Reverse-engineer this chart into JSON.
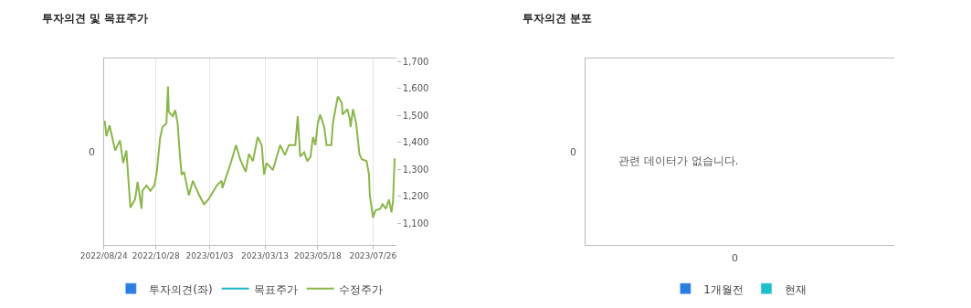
{
  "chart_data": [
    {
      "type": "line",
      "title": "투자의견 및 목표주가",
      "xlim": [
        "2022-08-24",
        "2023-08-24"
      ],
      "xticks": [
        {
          "value": "2022-08-24",
          "label": "2022/08/24"
        },
        {
          "value": "2022-10-28",
          "label": "2022/10/28"
        },
        {
          "value": "2023-01-03",
          "label": "2023/01/03"
        },
        {
          "value": "2023-03-13",
          "label": "2023/03/13"
        },
        {
          "value": "2023-05-18",
          "label": "2023/05/18"
        },
        {
          "value": "2023-07-26",
          "label": "2023/07/26"
        }
      ],
      "annotations": [
        "0"
      ],
      "y2lim": [
        1020,
        1710
      ],
      "y2ticks": [
        {
          "value": 1100,
          "label": "1,100"
        },
        {
          "value": 1200,
          "label": "1,200"
        },
        {
          "value": 1300,
          "label": "1,300"
        },
        {
          "value": 1400,
          "label": "1,400"
        },
        {
          "value": 1500,
          "label": "1,500"
        },
        {
          "value": 1600,
          "label": "1,600"
        },
        {
          "value": 1700,
          "label": "1,700"
        }
      ],
      "grid": "x",
      "legend": "bottom",
      "series": [
        {
          "name": "투자의견(좌)",
          "type": "bar",
          "color": "#2b7de0"
        },
        {
          "name": "목표주가",
          "type": "line",
          "color": "#1fb5c8",
          "axis": "y2"
        },
        {
          "name": "수정주가",
          "type": "line",
          "color": "#8ab64a",
          "axis": "y2",
          "x": [
            "2022-08-25",
            "2022-08-27",
            "2022-08-31",
            "2022-09-07",
            "2022-09-13",
            "2022-09-17",
            "2022-09-21",
            "2022-09-26",
            "2022-10-02",
            "2022-10-05",
            "2022-10-10",
            "2022-10-11",
            "2022-10-16",
            "2022-10-21",
            "2022-10-26",
            "2022-10-29",
            "2022-11-02",
            "2022-11-05",
            "2022-11-10",
            "2022-11-12",
            "2022-11-13",
            "2022-11-18",
            "2022-11-21",
            "2022-11-24",
            "2022-11-27",
            "2022-11-29",
            "2022-12-02",
            "2022-12-08",
            "2022-12-13",
            "2022-12-21",
            "2022-12-27",
            "2023-01-02",
            "2023-01-12",
            "2023-01-18",
            "2023-01-19",
            "2023-01-29",
            "2023-02-05",
            "2023-02-10",
            "2023-02-17",
            "2023-02-21",
            "2023-02-26",
            "2023-03-04",
            "2023-03-09",
            "2023-03-12",
            "2023-03-15",
            "2023-03-23",
            "2023-04-01",
            "2023-04-07",
            "2023-04-12",
            "2023-04-20",
            "2023-04-23",
            "2023-04-26",
            "2023-05-01",
            "2023-05-05",
            "2023-05-09",
            "2023-05-12",
            "2023-05-15",
            "2023-05-18",
            "2023-05-21",
            "2023-05-26",
            "2023-05-29",
            "2023-06-04",
            "2023-06-06",
            "2023-06-12",
            "2023-06-17",
            "2023-06-18",
            "2023-06-24",
            "2023-06-27",
            "2023-06-28",
            "2023-07-01",
            "2023-07-05",
            "2023-07-09",
            "2023-07-12",
            "2023-07-18",
            "2023-07-21",
            "2023-07-22",
            "2023-07-26",
            "2023-07-29",
            "2023-08-04",
            "2023-08-07",
            "2023-08-11",
            "2023-08-15",
            "2023-08-18",
            "2023-08-20",
            "2023-08-22"
          ],
          "values": [
            1480,
            1423,
            1463,
            1370,
            1407,
            1323,
            1370,
            1157,
            1190,
            1253,
            1153,
            1220,
            1240,
            1220,
            1240,
            1290,
            1413,
            1457,
            1470,
            1607,
            1513,
            1497,
            1520,
            1470,
            1347,
            1280,
            1290,
            1203,
            1257,
            1203,
            1170,
            1190,
            1240,
            1257,
            1230,
            1320,
            1390,
            1337,
            1290,
            1357,
            1330,
            1420,
            1390,
            1280,
            1323,
            1297,
            1390,
            1353,
            1390,
            1390,
            1497,
            1347,
            1363,
            1330,
            1347,
            1420,
            1390,
            1470,
            1503,
            1457,
            1390,
            1390,
            1473,
            1570,
            1547,
            1503,
            1523,
            1487,
            1457,
            1523,
            1470,
            1357,
            1337,
            1330,
            1280,
            1203,
            1120,
            1147,
            1153,
            1170,
            1153,
            1187,
            1140,
            1180,
            1340
          ]
        }
      ]
    },
    {
      "type": "other",
      "title": "투자의견 분포",
      "legend": "bottom",
      "annotations": [
        "0",
        "0",
        "관련 데이터가 없습니다."
      ],
      "series": [
        {
          "name": "1개월전",
          "color": "#2b7de0",
          "values": [
            null
          ]
        },
        {
          "name": "현재",
          "color": "#1fc0cc",
          "values": [
            null
          ]
        }
      ]
    }
  ]
}
